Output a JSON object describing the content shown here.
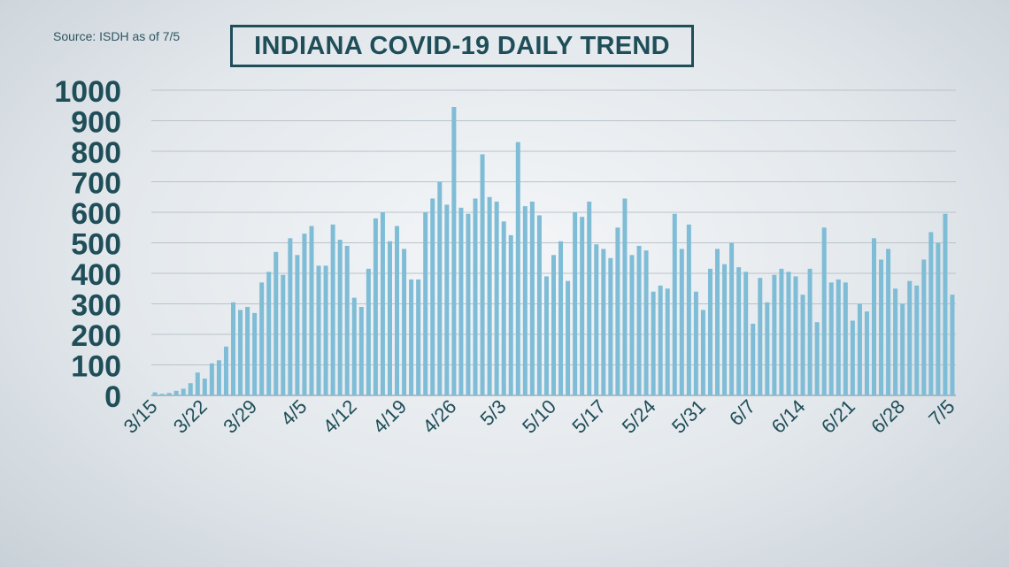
{
  "source": "Source: ISDH as of 7/5",
  "title": "INDIANA COVID-19 DAILY TREND",
  "colors": {
    "bar": "#7fbcd6",
    "text": "#1f4e59",
    "grid": "#b9c3ca"
  },
  "chart_data": {
    "type": "bar",
    "title": "INDIANA COVID-19 DAILY TREND",
    "xlabel": "",
    "ylabel": "",
    "ylim": [
      0,
      1000
    ],
    "yticks": [
      0,
      100,
      200,
      300,
      400,
      500,
      600,
      700,
      800,
      900,
      1000
    ],
    "grid": true,
    "x_start": "3/15",
    "x_end": "7/5",
    "xtick_labels": [
      "3/15",
      "3/22",
      "3/29",
      "4/5",
      "4/12",
      "4/19",
      "4/26",
      "5/3",
      "5/10",
      "5/17",
      "5/24",
      "5/31",
      "6/7",
      "6/14",
      "6/21",
      "6/28",
      "7/5"
    ],
    "values": [
      10,
      5,
      8,
      15,
      22,
      40,
      75,
      55,
      105,
      115,
      160,
      305,
      280,
      290,
      270,
      370,
      405,
      470,
      395,
      515,
      460,
      530,
      555,
      425,
      425,
      560,
      510,
      490,
      320,
      290,
      415,
      580,
      600,
      505,
      555,
      480,
      380,
      380,
      600,
      645,
      700,
      625,
      945,
      615,
      595,
      645,
      790,
      650,
      635,
      570,
      525,
      830,
      620,
      635,
      590,
      390,
      460,
      505,
      375,
      600,
      585,
      635,
      495,
      480,
      450,
      550,
      645,
      460,
      490,
      475,
      340,
      360,
      350,
      595,
      480,
      560,
      340,
      280,
      415,
      480,
      430,
      500,
      420,
      405,
      235,
      385,
      305,
      395,
      415,
      405,
      390,
      330,
      415,
      240,
      550,
      370,
      380,
      370,
      245,
      300,
      275,
      515,
      445,
      480,
      350,
      300,
      375,
      360,
      445,
      535,
      500,
      595,
      330
    ]
  }
}
